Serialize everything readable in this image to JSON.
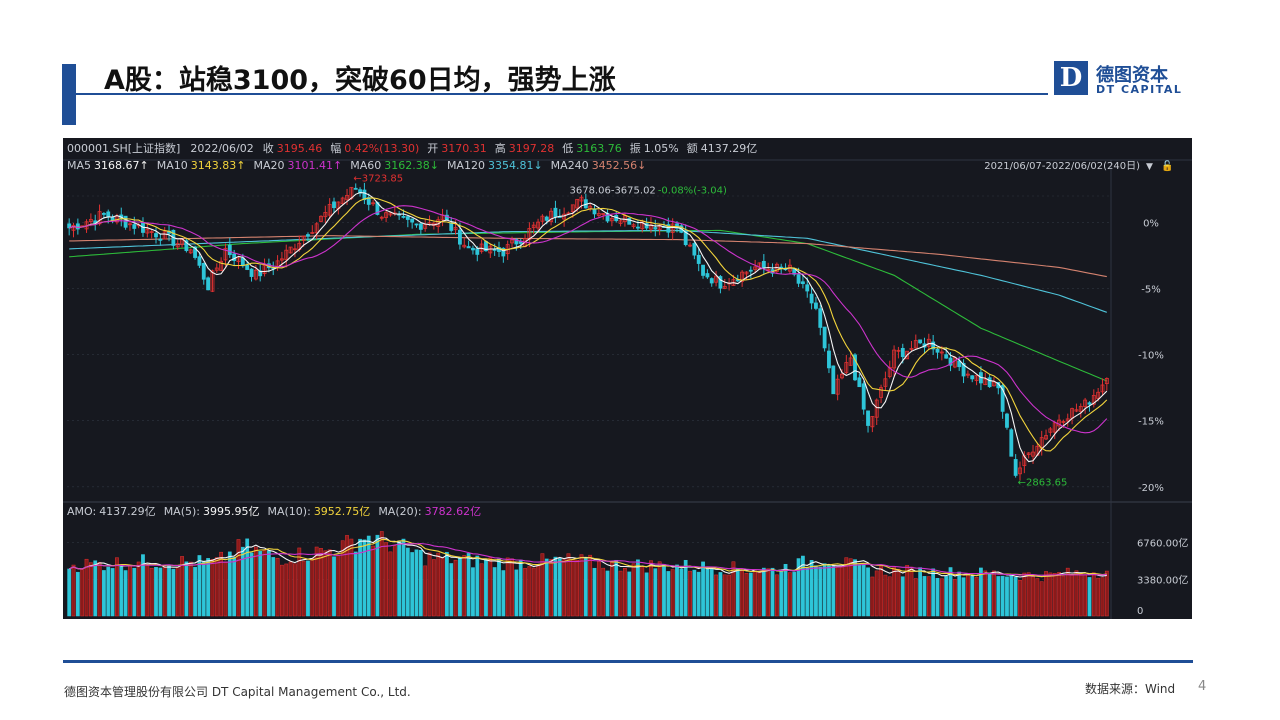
{
  "slide": {
    "title": "A股：站稳3100，突破60日均，强势上涨",
    "logo_letter": "D",
    "logo_cn": "德图资本",
    "logo_en": "DT CAPITAL",
    "footer_company": "德图资本管理股份有限公司  DT Capital  Management  Co., Ltd.",
    "footer_source": "数据来源：Wind",
    "page_number": "4"
  },
  "colors": {
    "brand": "#1f4e96",
    "bg": "#16181f",
    "up": "#e03131",
    "down": "#2ec5d8",
    "ma5": "#f5f5f5",
    "ma10": "#f2d43c",
    "ma20": "#cc33cc",
    "ma60": "#2dbb3a",
    "ma120": "#4fc3d9",
    "ma240": "#d4826f",
    "grid": "#2f3440",
    "label": "#c8ccd4"
  },
  "chart_data": {
    "type": "candlestick",
    "symbol": "000001.SH[上证指数]",
    "header": [
      {
        "label": "2022/06/02",
        "value": "",
        "color": "#c8ccd4"
      },
      {
        "label": "收",
        "value": "3195.46",
        "color": "#e03131"
      },
      {
        "label": "幅",
        "value": "0.42%(13.30)",
        "color": "#e03131"
      },
      {
        "label": "开",
        "value": "3170.31",
        "color": "#e03131"
      },
      {
        "label": "高",
        "value": "3197.28",
        "color": "#e03131"
      },
      {
        "label": "低",
        "value": "3163.76",
        "color": "#2dbb3a"
      },
      {
        "label": "振",
        "value": "1.05%",
        "color": "#c8ccd4"
      },
      {
        "label": "额",
        "value": "4137.29亿",
        "color": "#c8ccd4"
      }
    ],
    "ma_legend": [
      {
        "label": "MA5",
        "value": "3168.67↑",
        "color": "#f5f5f5"
      },
      {
        "label": "MA10",
        "value": "3143.83↑",
        "color": "#f2d43c"
      },
      {
        "label": "MA20",
        "value": "3101.41↑",
        "color": "#cc33cc"
      },
      {
        "label": "MA60",
        "value": "3162.38↓",
        "color": "#2dbb3a"
      },
      {
        "label": "MA120",
        "value": "3354.81↓",
        "color": "#4fc3d9"
      },
      {
        "label": "MA240",
        "value": "3452.56↓",
        "color": "#d4826f"
      }
    ],
    "period": "2021/06/07-2022/06/02(240日)",
    "y_ticks_pct": [
      0,
      -5,
      -10,
      -15,
      -20
    ],
    "y_tick_labels": [
      "0%",
      "-5%",
      "-10%",
      "-15%",
      "-20%"
    ],
    "pct_range": [
      2.0,
      -21.0
    ],
    "annotations": {
      "high": "3723.85",
      "low": "2863.65",
      "range": "3678.06-3675.02 -0.08%(-3.04)"
    },
    "key_points_pct": [
      {
        "day": 0,
        "pct": -0.4
      },
      {
        "day": 8,
        "pct": 0.6
      },
      {
        "day": 20,
        "pct": -0.8
      },
      {
        "day": 28,
        "pct": -2.0
      },
      {
        "day": 32,
        "pct": -4.8
      },
      {
        "day": 36,
        "pct": -2.0
      },
      {
        "day": 43,
        "pct": -4.0
      },
      {
        "day": 48,
        "pct": -3.0
      },
      {
        "day": 54,
        "pct": -1.0
      },
      {
        "day": 62,
        "pct": 1.6
      },
      {
        "day": 66,
        "pct": 2.6
      },
      {
        "day": 72,
        "pct": 0.6
      },
      {
        "day": 80,
        "pct": -0.2
      },
      {
        "day": 86,
        "pct": 0.4
      },
      {
        "day": 92,
        "pct": -2.0
      },
      {
        "day": 100,
        "pct": -2.2
      },
      {
        "day": 110,
        "pct": 0.4
      },
      {
        "day": 118,
        "pct": 1.6
      },
      {
        "day": 124,
        "pct": 0.5
      },
      {
        "day": 132,
        "pct": 0.0
      },
      {
        "day": 140,
        "pct": -0.4
      },
      {
        "day": 146,
        "pct": -3.8
      },
      {
        "day": 150,
        "pct": -4.6
      },
      {
        "day": 158,
        "pct": -3.4
      },
      {
        "day": 166,
        "pct": -3.6
      },
      {
        "day": 172,
        "pct": -6.5
      },
      {
        "day": 176,
        "pct": -13.0
      },
      {
        "day": 180,
        "pct": -10.2
      },
      {
        "day": 184,
        "pct": -15.5
      },
      {
        "day": 190,
        "pct": -10.0
      },
      {
        "day": 198,
        "pct": -9.0
      },
      {
        "day": 206,
        "pct": -11.2
      },
      {
        "day": 214,
        "pct": -12.6
      },
      {
        "day": 218,
        "pct": -19.0
      },
      {
        "day": 222,
        "pct": -17.0
      },
      {
        "day": 228,
        "pct": -14.8
      },
      {
        "day": 234,
        "pct": -13.8
      },
      {
        "day": 239,
        "pct": -11.8
      }
    ],
    "ma_pct": {
      "ma60": [
        [
          0,
          -2.6
        ],
        [
          40,
          -1.6
        ],
        [
          80,
          -0.9
        ],
        [
          120,
          -0.7
        ],
        [
          150,
          -0.6
        ],
        [
          170,
          -1.6
        ],
        [
          190,
          -4.0
        ],
        [
          210,
          -8.0
        ],
        [
          228,
          -10.5
        ],
        [
          239,
          -12.0
        ]
      ],
      "ma120": [
        [
          0,
          -2.0
        ],
        [
          60,
          -1.2
        ],
        [
          100,
          -0.7
        ],
        [
          140,
          -0.6
        ],
        [
          170,
          -1.2
        ],
        [
          190,
          -2.6
        ],
        [
          210,
          -4.0
        ],
        [
          228,
          -5.5
        ],
        [
          239,
          -6.8
        ]
      ],
      "ma240": [
        [
          0,
          -1.4
        ],
        [
          60,
          -1.0
        ],
        [
          100,
          -1.2
        ],
        [
          140,
          -1.3
        ],
        [
          170,
          -1.6
        ],
        [
          200,
          -2.4
        ],
        [
          228,
          -3.4
        ],
        [
          239,
          -4.1
        ]
      ]
    },
    "amo_legend": [
      {
        "label": "AMO:",
        "value": "4137.29亿",
        "color": "#c8ccd4"
      },
      {
        "label": "MA(5):",
        "value": "3995.95亿",
        "color": "#f5f5f5"
      },
      {
        "label": "MA(10):",
        "value": "3952.75亿",
        "color": "#f2d43c"
      },
      {
        "label": "MA(20):",
        "value": "3782.62亿",
        "color": "#cc33cc"
      }
    ],
    "amo_ticks": [
      {
        "value": 6760,
        "label": "6760.00亿"
      },
      {
        "value": 3380,
        "label": "3380.00亿"
      },
      {
        "value": 0,
        "label": "0"
      }
    ],
    "amo_max": 8100,
    "amo_profile": [
      [
        0,
        4700
      ],
      [
        20,
        5000
      ],
      [
        34,
        4900
      ],
      [
        40,
        6400
      ],
      [
        48,
        5300
      ],
      [
        62,
        6200
      ],
      [
        68,
        7300
      ],
      [
        74,
        6700
      ],
      [
        82,
        5400
      ],
      [
        100,
        4900
      ],
      [
        116,
        5100
      ],
      [
        124,
        4700
      ],
      [
        140,
        4600
      ],
      [
        162,
        4200
      ],
      [
        174,
        5300
      ],
      [
        184,
        4200
      ],
      [
        200,
        4000
      ],
      [
        212,
        3900
      ],
      [
        224,
        3700
      ],
      [
        239,
        4137
      ]
    ],
    "n_days": 240
  }
}
